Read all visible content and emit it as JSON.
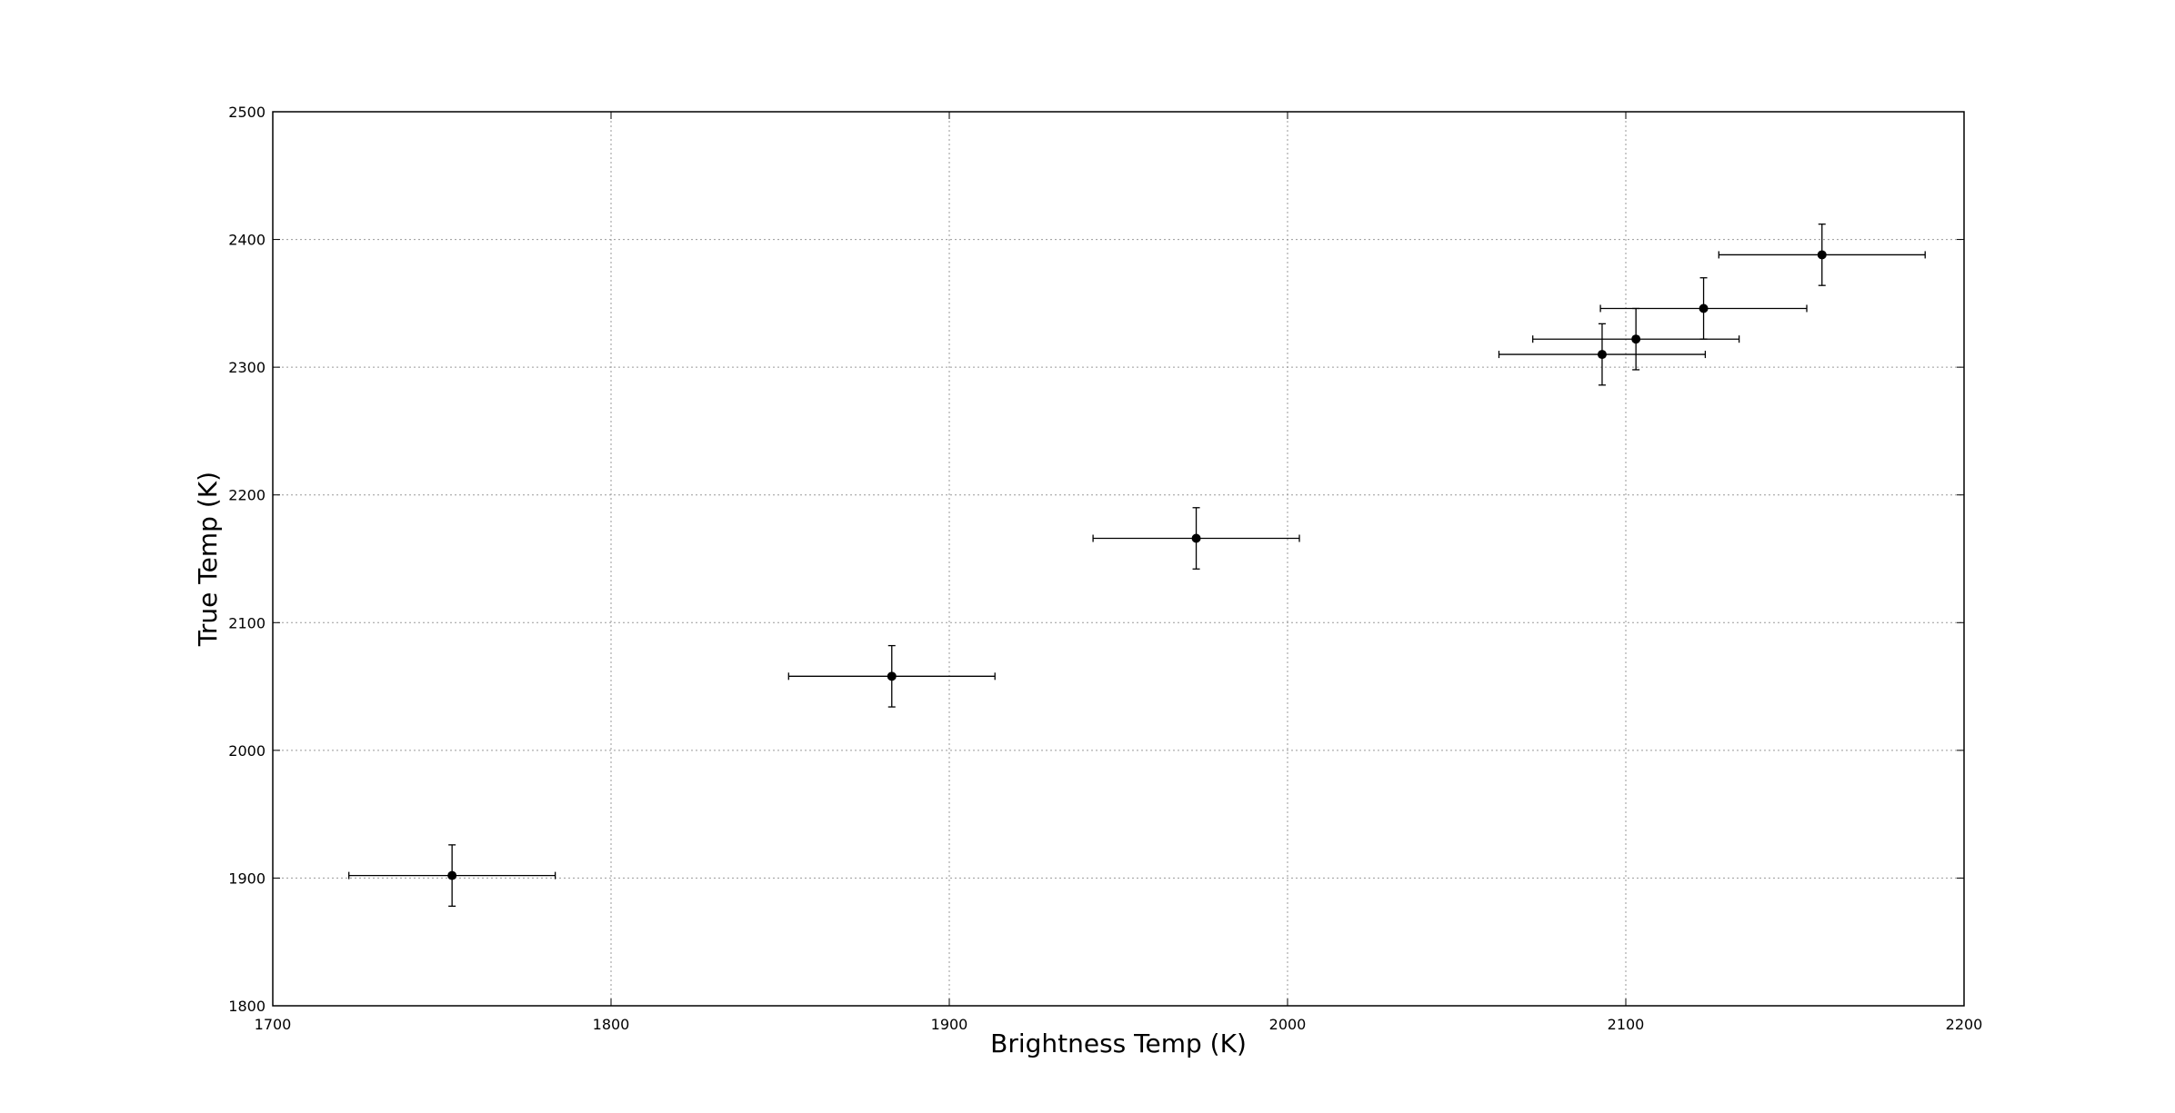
{
  "chart_data": {
    "type": "scatter",
    "xlabel": "Brightness Temp (K)",
    "ylabel": "True Temp (K)",
    "xlim": [
      1700,
      2200
    ],
    "ylim": [
      1800,
      2500
    ],
    "xticks": [
      1700,
      1800,
      1900,
      2000,
      2100,
      2200
    ],
    "yticks": [
      1800,
      1900,
      2000,
      2100,
      2200,
      2300,
      2400,
      2500
    ],
    "grid": true,
    "colors": {
      "marker": "#000000",
      "errorbar": "#000000",
      "grid": "#9a9a9a",
      "frame": "#000000"
    },
    "points": [
      {
        "x": 1753,
        "y": 1902,
        "xerr": 30.5,
        "yerr": 24
      },
      {
        "x": 1883,
        "y": 2058,
        "xerr": 30.5,
        "yerr": 24
      },
      {
        "x": 1973,
        "y": 2166,
        "xerr": 30.5,
        "yerr": 24
      },
      {
        "x": 2093,
        "y": 2310,
        "xerr": 30.5,
        "yerr": 24
      },
      {
        "x": 2103,
        "y": 2322,
        "xerr": 30.5,
        "yerr": 24
      },
      {
        "x": 2123,
        "y": 2346,
        "xerr": 30.5,
        "yerr": 24
      },
      {
        "x": 2158,
        "y": 2388,
        "xerr": 30.5,
        "yerr": 24
      }
    ]
  }
}
